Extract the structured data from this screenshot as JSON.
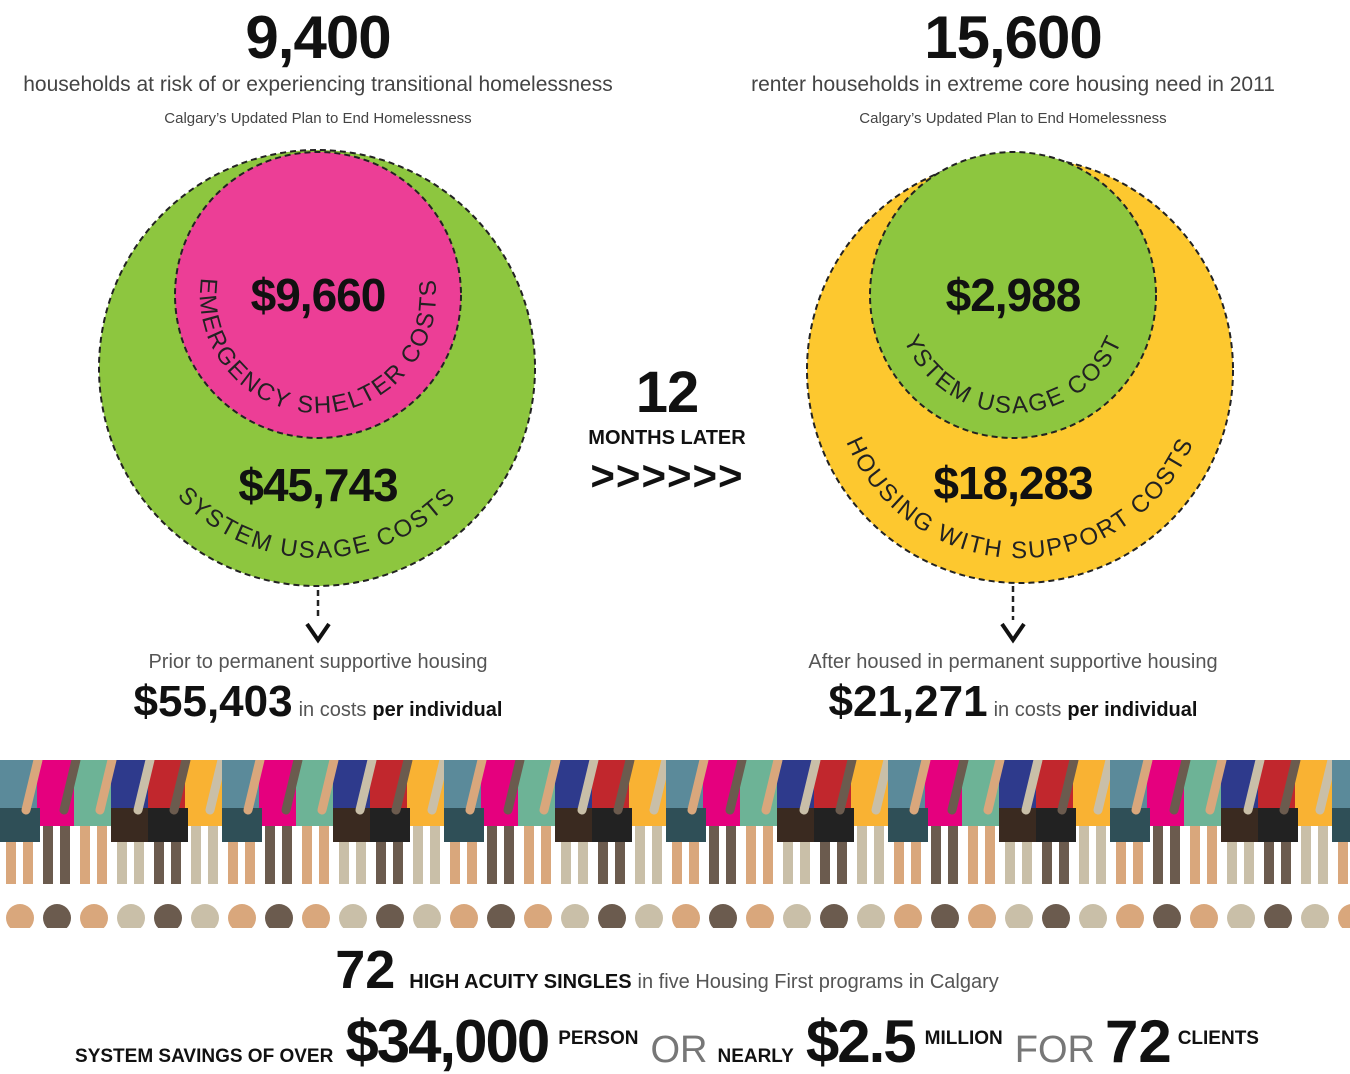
{
  "left_stat": {
    "number": "9,400",
    "description": "households at risk of or experiencing transitional homelessness",
    "source": "Calgary’s Updated Plan to End Homelessness"
  },
  "right_stat": {
    "number": "15,600",
    "description": "renter households in extreme core housing need in 2011",
    "source": "Calgary’s Updated Plan to End Homelessness"
  },
  "before": {
    "inner_value": "$9,660",
    "inner_label": "EMERGENCY SHELTER COSTS",
    "outer_value": "$45,743",
    "outer_label": "SYSTEM USAGE COSTS",
    "caption": "Prior to permanent supportive housing",
    "total": "$55,403",
    "total_suffix": "in costs",
    "total_emphasis": "per individual"
  },
  "middle": {
    "number": "12",
    "label": "MONTHS LATER",
    "arrows": ">>>>>>"
  },
  "after": {
    "inner_value": "$2,988",
    "inner_label": "SYSTEM USAGE COSTS",
    "outer_value": "$18,283",
    "outer_label": "HOUSING WITH SUPPORT COSTS",
    "caption": "After housed in permanent supportive housing",
    "total": "$21,271",
    "total_suffix": "in costs",
    "total_emphasis": "per individual"
  },
  "footer": {
    "line1": {
      "number": "72",
      "emphasis": "HIGH ACUITY SINGLES",
      "rest": "in five Housing First programs in Calgary"
    },
    "line2": {
      "lead": "SYSTEM SAVINGS OF OVER",
      "per_person": "$34,000",
      "person": "PERSON",
      "or": "OR",
      "nearly": "NEARLY",
      "total": "$2.5",
      "million": "MILLION",
      "for": "FOR",
      "clients_number": "72",
      "clients": "CLIENTS"
    }
  }
}
